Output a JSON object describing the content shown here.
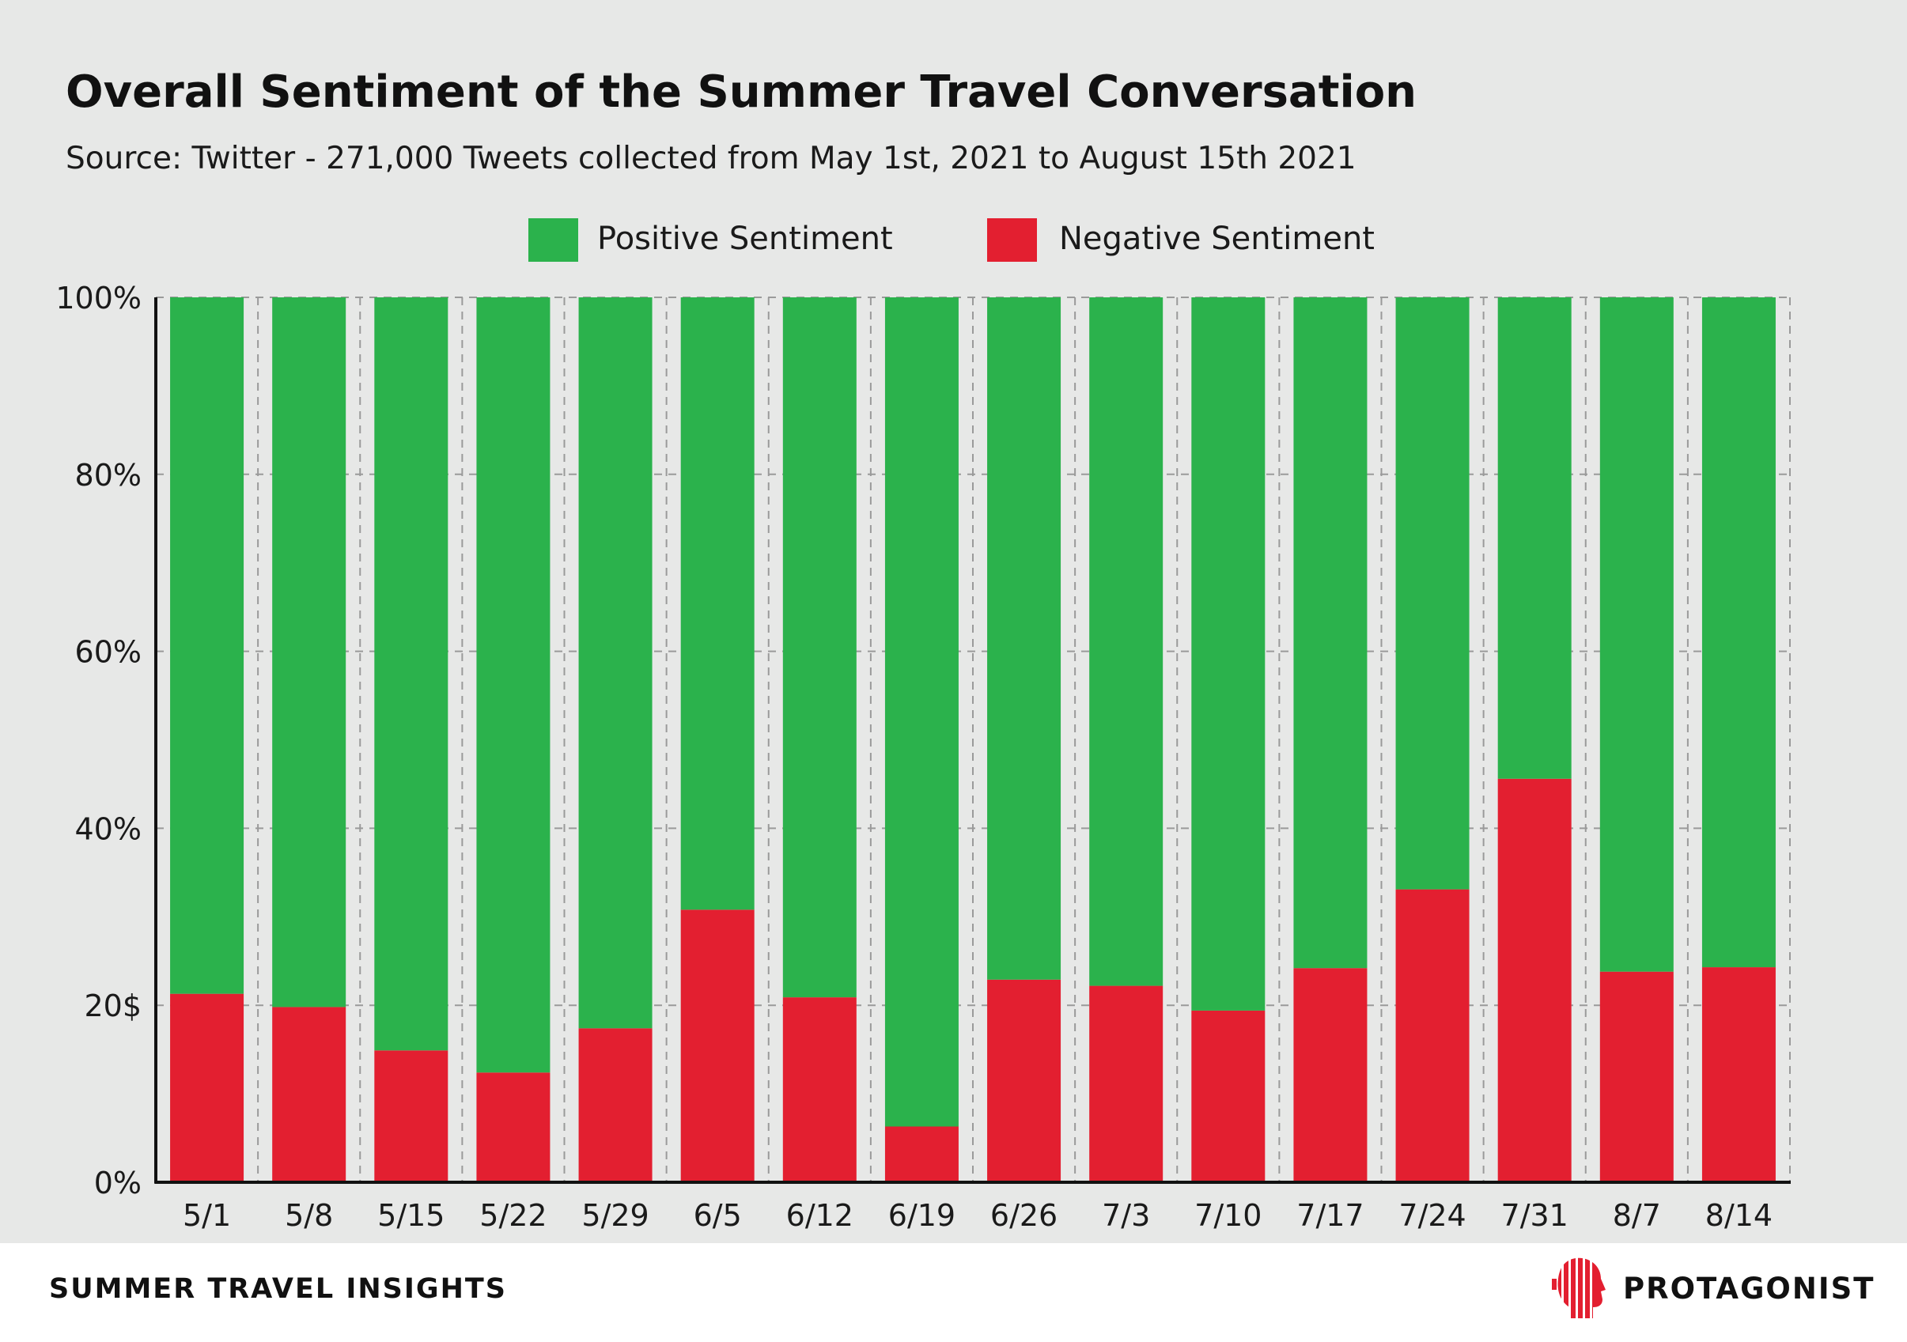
{
  "header": {
    "title": "Overall Sentiment of the Summer Travel Conversation",
    "subtitle": "Source: Twitter - 271,000 Tweets collected from May 1st, 2021 to August 15th 2021"
  },
  "footer": {
    "section_title": "SUMMER TRAVEL INSIGHTS",
    "brand_name": "PROTAGONIST",
    "brand_logo_icon": "red-striped-head-profile-icon"
  },
  "colors": {
    "positive": "#2bb24c",
    "negative": "#e31f30",
    "background": "#e7e8e7"
  },
  "chart_data": {
    "type": "bar",
    "stacked": true,
    "title": "Overall Sentiment of the Summer Travel Conversation",
    "subtitle": "Source: Twitter - 271,000 Tweets collected from May 1st, 2021 to August 15th 2021",
    "xlabel": "",
    "ylabel": "",
    "categories": [
      "5/1",
      "5/8",
      "5/15",
      "5/22",
      "5/29",
      "6/5",
      "6/12",
      "6/19",
      "6/26",
      "7/3",
      "7/10",
      "7/17",
      "7/24",
      "7/31",
      "8/7",
      "8/14"
    ],
    "series": [
      {
        "name": "Negative Sentiment",
        "color": "#e31f30",
        "values": [
          21.3,
          19.8,
          14.9,
          12.4,
          17.4,
          30.8,
          20.9,
          6.3,
          22.9,
          22.2,
          19.4,
          24.2,
          33.1,
          45.6,
          23.8,
          24.3
        ]
      },
      {
        "name": "Positive Sentiment",
        "color": "#2bb24c",
        "values": [
          78.7,
          80.2,
          85.1,
          87.6,
          82.6,
          69.2,
          79.1,
          93.7,
          77.1,
          77.8,
          80.6,
          75.8,
          66.9,
          54.4,
          76.2,
          75.7
        ]
      }
    ],
    "ylim": [
      0,
      100
    ],
    "ytick_labels": [
      "0%",
      "20$",
      "40%",
      "60%",
      "80%",
      "100%"
    ],
    "grid": true,
    "legend": {
      "placement": "top-center",
      "entries": [
        "Positive Sentiment",
        "Negative Sentiment"
      ]
    }
  }
}
